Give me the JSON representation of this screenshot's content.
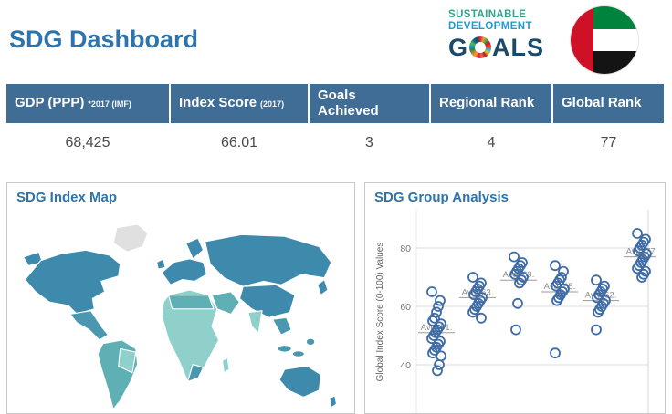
{
  "app": {
    "title": "SDG Dashboard"
  },
  "logo": {
    "line1": "SUSTAINABLE",
    "line2": "DEVELOPMENT",
    "goals_g": "G",
    "goals_als": "ALS",
    "wheel_icon": "sdg-color-wheel"
  },
  "flag": {
    "country": "United Arab Emirates",
    "colors": {
      "red": "#ce1126",
      "green": "#00843d",
      "white": "#ffffff",
      "black": "#141414"
    }
  },
  "kpi": {
    "columns": [
      {
        "label": "GDP (PPP)",
        "sublabel": "*2017 (IMF)",
        "value": "68,425"
      },
      {
        "label": "Index Score",
        "sublabel": "(2017)",
        "value": "66.01"
      },
      {
        "label": "Goals Achieved",
        "sublabel": "",
        "value": "3"
      },
      {
        "label": "Regional Rank",
        "sublabel": "",
        "value": "4"
      },
      {
        "label": "Global Rank",
        "sublabel": "",
        "value": "77"
      }
    ]
  },
  "panels": {
    "map_title": "SDG Index Map",
    "chart_title": "SDG Group Analysis"
  },
  "colors": {
    "accent": "#2d74ad",
    "kpi_header_bg": "#3f6d95",
    "circle_stroke": "#3f6ca6",
    "avg_text": "#8c8c8c",
    "avg_line": "#9a9a9a",
    "grid": "#dddddd",
    "tick_text": "#777777",
    "map_main": "#3e8aad",
    "map_mid": "#5fb0b5",
    "map_light": "#8fd0cb",
    "map_nodata": "#e0e0e0"
  },
  "chart_data": {
    "type": "scatter",
    "title": "SDG Group Analysis",
    "ylabel": "Global Index Score (0-100) Values",
    "yticks": [
      80,
      60,
      40
    ],
    "ylim": [
      23,
      88
    ],
    "grid": true,
    "groups": [
      {
        "avg_label": "Avg: 51.",
        "avg": 51,
        "values": [
          65,
          62,
          60,
          58,
          56,
          55,
          54,
          53,
          52,
          51,
          50,
          49,
          48,
          47,
          46,
          45,
          44,
          43,
          40,
          38
        ]
      },
      {
        "avg_label": "Avg: 63.",
        "avg": 63,
        "values": [
          70,
          68,
          67,
          66,
          65,
          64,
          63,
          62,
          61,
          60,
          59,
          58,
          56
        ]
      },
      {
        "avg_label": "Avg: 69.",
        "avg": 69,
        "values": [
          77,
          75,
          74,
          73,
          72,
          71,
          70,
          69,
          68,
          61,
          52
        ]
      },
      {
        "avg_label": "Avg: 65.",
        "avg": 65,
        "values": [
          74,
          72,
          70,
          69,
          68,
          67,
          66,
          65,
          64,
          63,
          62,
          44
        ]
      },
      {
        "avg_label": "Avg: 62.",
        "avg": 62,
        "values": [
          69,
          67,
          66,
          65,
          64,
          63,
          62,
          61,
          60,
          59,
          58,
          52
        ]
      },
      {
        "avg_label": "Avg: 77.",
        "avg": 77,
        "values": [
          85,
          83,
          82,
          81,
          80,
          79,
          78,
          77,
          76,
          75,
          74,
          73,
          72,
          71,
          70
        ]
      }
    ]
  }
}
